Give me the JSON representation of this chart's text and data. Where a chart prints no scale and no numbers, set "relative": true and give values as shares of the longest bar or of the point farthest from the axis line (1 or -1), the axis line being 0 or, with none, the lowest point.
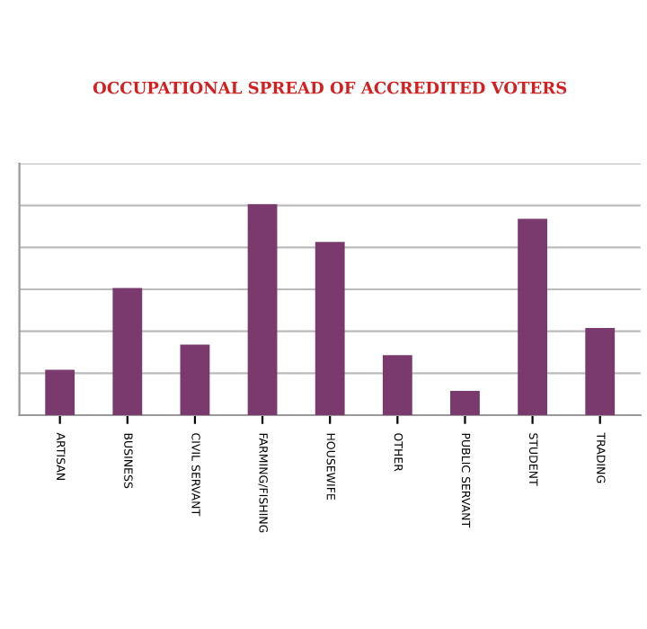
{
  "chart_data": {
    "type": "bar",
    "title": "OCCUPATIONAL SPREAD OF ACCREDITED VOTERS",
    "categories": [
      "ARTISAN",
      "BUSINESS",
      "CIVIL SERVANT",
      "FARMING/FISHING",
      "HOUSEWIFE",
      "OTHER",
      "PUBLIC SERVANT",
      "STUDENT",
      "TRADING"
    ],
    "values": [
      0.21,
      0.6,
      0.33,
      1,
      0.82,
      0.28,
      0.11,
      0.93,
      0.41
    ],
    "color": "#7a3a6e",
    "relative": true,
    "grid": "y"
  }
}
